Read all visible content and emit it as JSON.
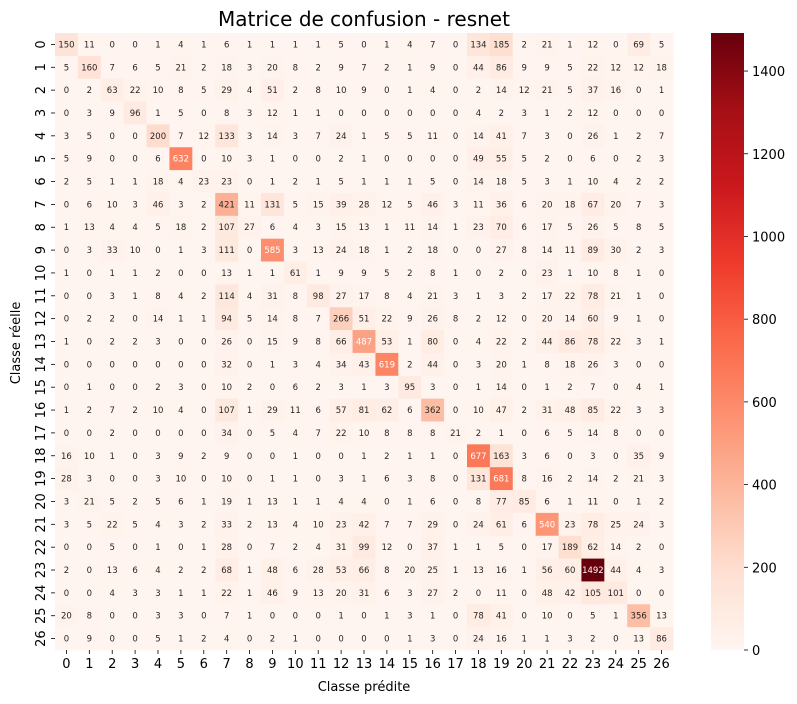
{
  "chart_data": {
    "type": "heatmap",
    "title": "Matrice de confusion - resnet",
    "xlabel": "Classe prédite",
    "ylabel": "Classe réelle",
    "x_categories": [
      "0",
      "1",
      "2",
      "3",
      "4",
      "5",
      "6",
      "7",
      "8",
      "9",
      "10",
      "11",
      "12",
      "13",
      "14",
      "15",
      "16",
      "17",
      "18",
      "19",
      "20",
      "21",
      "22",
      "23",
      "24",
      "25",
      "26"
    ],
    "y_categories": [
      "0",
      "1",
      "2",
      "3",
      "4",
      "5",
      "6",
      "7",
      "8",
      "9",
      "10",
      "11",
      "12",
      "13",
      "14",
      "15",
      "16",
      "17",
      "18",
      "19",
      "20",
      "21",
      "22",
      "23",
      "24",
      "25",
      "26"
    ],
    "values": [
      [
        150,
        11,
        0,
        0,
        1,
        4,
        1,
        6,
        1,
        1,
        1,
        1,
        5,
        0,
        1,
        4,
        7,
        0,
        134,
        185,
        2,
        21,
        1,
        12,
        0,
        69,
        5
      ],
      [
        5,
        160,
        7,
        6,
        5,
        21,
        2,
        18,
        3,
        20,
        8,
        2,
        9,
        7,
        2,
        1,
        9,
        0,
        44,
        86,
        9,
        9,
        5,
        22,
        12,
        12,
        18
      ],
      [
        0,
        2,
        63,
        22,
        10,
        8,
        5,
        29,
        4,
        51,
        2,
        8,
        10,
        9,
        0,
        1,
        4,
        0,
        2,
        14,
        12,
        21,
        5,
        37,
        16,
        0,
        1
      ],
      [
        0,
        3,
        9,
        96,
        1,
        5,
        0,
        8,
        3,
        12,
        1,
        1,
        0,
        0,
        0,
        0,
        0,
        0,
        4,
        2,
        3,
        1,
        2,
        12,
        0,
        0,
        0
      ],
      [
        3,
        5,
        0,
        0,
        200,
        7,
        12,
        133,
        3,
        14,
        3,
        7,
        24,
        1,
        5,
        5,
        11,
        0,
        14,
        41,
        7,
        3,
        0,
        26,
        1,
        2,
        7
      ],
      [
        5,
        9,
        0,
        0,
        6,
        632,
        0,
        10,
        3,
        1,
        0,
        0,
        2,
        1,
        0,
        0,
        0,
        0,
        49,
        55,
        5,
        2,
        0,
        6,
        0,
        2,
        3
      ],
      [
        2,
        5,
        1,
        1,
        18,
        4,
        23,
        23,
        0,
        1,
        2,
        1,
        5,
        1,
        1,
        1,
        5,
        0,
        14,
        18,
        5,
        3,
        1,
        10,
        4,
        2,
        2
      ],
      [
        0,
        6,
        10,
        3,
        46,
        3,
        2,
        421,
        11,
        131,
        5,
        15,
        39,
        28,
        12,
        5,
        46,
        3,
        11,
        36,
        6,
        20,
        18,
        67,
        20,
        7,
        3
      ],
      [
        1,
        13,
        4,
        4,
        5,
        18,
        2,
        107,
        27,
        6,
        4,
        3,
        15,
        13,
        1,
        11,
        14,
        1,
        23,
        70,
        6,
        17,
        5,
        26,
        5,
        8,
        5
      ],
      [
        0,
        3,
        33,
        10,
        0,
        1,
        3,
        111,
        0,
        585,
        3,
        13,
        24,
        18,
        1,
        2,
        18,
        0,
        0,
        27,
        8,
        14,
        11,
        89,
        30,
        2,
        3
      ],
      [
        1,
        0,
        1,
        1,
        2,
        0,
        0,
        13,
        1,
        1,
        61,
        1,
        9,
        9,
        5,
        2,
        8,
        1,
        0,
        2,
        0,
        23,
        1,
        10,
        8,
        1,
        0
      ],
      [
        0,
        0,
        3,
        1,
        8,
        4,
        2,
        114,
        4,
        31,
        8,
        98,
        27,
        17,
        8,
        4,
        21,
        3,
        1,
        3,
        2,
        17,
        22,
        78,
        21,
        1,
        0
      ],
      [
        0,
        2,
        2,
        0,
        14,
        1,
        1,
        94,
        5,
        14,
        8,
        7,
        266,
        51,
        22,
        9,
        26,
        8,
        2,
        12,
        0,
        20,
        14,
        60,
        9,
        1,
        0
      ],
      [
        1,
        0,
        2,
        2,
        3,
        0,
        0,
        26,
        0,
        15,
        9,
        8,
        66,
        487,
        53,
        1,
        80,
        0,
        4,
        22,
        2,
        44,
        86,
        78,
        22,
        3,
        1
      ],
      [
        0,
        0,
        0,
        0,
        0,
        0,
        0,
        32,
        0,
        1,
        3,
        4,
        34,
        43,
        619,
        2,
        44,
        0,
        3,
        20,
        1,
        8,
        18,
        26,
        3,
        0,
        0
      ],
      [
        0,
        1,
        0,
        0,
        2,
        3,
        0,
        10,
        2,
        0,
        6,
        2,
        3,
        1,
        3,
        95,
        3,
        0,
        1,
        14,
        0,
        1,
        2,
        7,
        0,
        4,
        1
      ],
      [
        1,
        2,
        7,
        2,
        10,
        4,
        0,
        107,
        1,
        29,
        11,
        6,
        57,
        81,
        62,
        6,
        362,
        0,
        10,
        47,
        2,
        31,
        48,
        85,
        22,
        3,
        3
      ],
      [
        0,
        0,
        2,
        0,
        0,
        0,
        0,
        34,
        0,
        5,
        4,
        7,
        22,
        10,
        8,
        8,
        8,
        21,
        2,
        1,
        0,
        6,
        5,
        14,
        8,
        0,
        0
      ],
      [
        16,
        10,
        1,
        0,
        3,
        9,
        2,
        9,
        0,
        0,
        1,
        0,
        0,
        1,
        2,
        1,
        1,
        0,
        677,
        163,
        3,
        6,
        0,
        3,
        0,
        35,
        9
      ],
      [
        28,
        3,
        0,
        0,
        3,
        10,
        0,
        10,
        0,
        1,
        1,
        0,
        3,
        1,
        6,
        3,
        8,
        0,
        131,
        681,
        8,
        16,
        2,
        14,
        2,
        21,
        3
      ],
      [
        3,
        21,
        5,
        2,
        5,
        6,
        1,
        19,
        1,
        13,
        1,
        1,
        4,
        4,
        0,
        1,
        6,
        0,
        8,
        77,
        85,
        6,
        1,
        11,
        0,
        1,
        2
      ],
      [
        3,
        5,
        22,
        5,
        4,
        3,
        2,
        33,
        2,
        13,
        4,
        10,
        23,
        42,
        7,
        7,
        29,
        0,
        24,
        61,
        6,
        540,
        23,
        78,
        25,
        24,
        3
      ],
      [
        0,
        0,
        5,
        0,
        1,
        0,
        1,
        28,
        0,
        7,
        2,
        4,
        31,
        99,
        12,
        0,
        37,
        1,
        1,
        5,
        0,
        17,
        189,
        62,
        14,
        2,
        0
      ],
      [
        2,
        0,
        13,
        6,
        4,
        2,
        2,
        68,
        1,
        48,
        6,
        28,
        53,
        66,
        8,
        20,
        25,
        1,
        13,
        16,
        1,
        56,
        60,
        1492,
        44,
        4,
        3
      ],
      [
        0,
        0,
        4,
        3,
        3,
        1,
        1,
        22,
        1,
        46,
        9,
        13,
        20,
        31,
        6,
        3,
        27,
        2,
        0,
        11,
        0,
        48,
        42,
        105,
        101,
        0,
        0
      ],
      [
        20,
        8,
        0,
        0,
        3,
        3,
        0,
        7,
        1,
        0,
        0,
        0,
        1,
        0,
        1,
        3,
        1,
        0,
        78,
        41,
        0,
        10,
        0,
        5,
        1,
        356,
        13
      ],
      [
        0,
        9,
        0,
        0,
        5,
        1,
        2,
        4,
        0,
        2,
        1,
        0,
        0,
        0,
        0,
        1,
        3,
        0,
        24,
        16,
        1,
        1,
        3,
        2,
        0,
        13,
        86
      ]
    ],
    "colorbar": {
      "min": 0,
      "max": 1492,
      "ticks": [
        "0",
        "200",
        "400",
        "600",
        "800",
        "1000",
        "1200",
        "1400"
      ],
      "tick_values": [
        0,
        200,
        400,
        600,
        800,
        1000,
        1200,
        1400
      ]
    },
    "colormap": "Reds",
    "grid": false
  }
}
